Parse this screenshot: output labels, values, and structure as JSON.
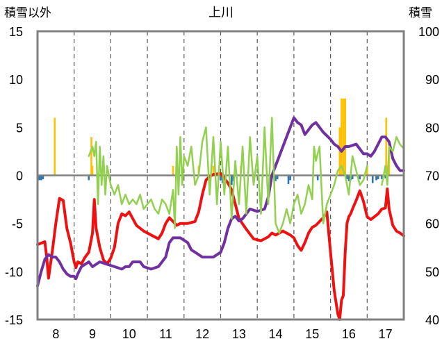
{
  "chart_data": {
    "type": "line",
    "title": "上川",
    "ylabel_left": "積雪以外",
    "ylabel_right": "積雪",
    "x_ticks": [
      "8",
      "9",
      "10",
      "11",
      "12",
      "13",
      "14",
      "15",
      "16",
      "17"
    ],
    "x_range": [
      7.5,
      17.5
    ],
    "ylim_left": [
      -15,
      15
    ],
    "ylim_right": [
      40,
      100
    ],
    "y_ticks_left": [
      "15",
      "10",
      "5",
      "0",
      "-5",
      "-10",
      "-15"
    ],
    "y_ticks_right": [
      "100",
      "90",
      "80",
      "70",
      "60",
      "50",
      "40"
    ],
    "grid": "dashed vertical",
    "legend": "none",
    "colors": {
      "red": "#ee1111",
      "green": "#92d050",
      "purple": "#7030a0",
      "orange": "#ffc000",
      "blue": "#2e75b6",
      "axis": "#808080"
    },
    "series": [
      {
        "axis": "left",
        "color": "#ee1111",
        "width": 4,
        "x": [
          7.5,
          7.7,
          7.75,
          7.8,
          7.9,
          8.0,
          8.1,
          8.2,
          8.3,
          8.4,
          8.5,
          8.55,
          8.6,
          8.7,
          8.8,
          8.9,
          9.0,
          9.05,
          9.1,
          9.2,
          9.3,
          9.4,
          9.5,
          9.6,
          9.7,
          9.8,
          9.9,
          10.0,
          10.2,
          10.4,
          10.6,
          10.8,
          10.9,
          11.0,
          11.1,
          11.2,
          11.3,
          11.4,
          11.6,
          11.8,
          11.9,
          12.0,
          12.1,
          12.2,
          12.3,
          12.5,
          12.6,
          12.7,
          12.8,
          12.9,
          13.0,
          13.2,
          13.4,
          13.6,
          13.8,
          13.9,
          14.0,
          14.2,
          14.4,
          14.5,
          14.6,
          14.7,
          14.8,
          14.9,
          15.0,
          15.1,
          15.2,
          15.3,
          15.4,
          15.5,
          15.6,
          15.7,
          15.75,
          15.8,
          15.85,
          15.9,
          15.95,
          16.0,
          16.05,
          16.1,
          16.2,
          16.3,
          16.4,
          16.5,
          16.6,
          16.7,
          16.8,
          16.9,
          17.0,
          17.05,
          17.1,
          17.2,
          17.3,
          17.4,
          17.5
        ],
        "y": [
          -7.2,
          -6.9,
          -8.5,
          -10.7,
          -8.0,
          -5.0,
          -2.4,
          -2.6,
          -5.5,
          -7.0,
          -9.0,
          -9.6,
          -9.0,
          -9.2,
          -8.5,
          -8.0,
          -6.0,
          -2.5,
          -5.5,
          -7.5,
          -8.8,
          -9.2,
          -8.6,
          -7.5,
          -5.0,
          -4.0,
          -4.2,
          -3.8,
          -5.2,
          -5.8,
          -6.2,
          -6.6,
          -6.0,
          -5.0,
          -4.4,
          -4.8,
          -5.2,
          -5.0,
          -5.0,
          -4.8,
          -3.8,
          -2.0,
          -0.5,
          -0.1,
          0.1,
          0.2,
          -0.3,
          -0.8,
          -1.5,
          -3.0,
          -4.5,
          -5.6,
          -6.6,
          -6.8,
          -6.4,
          -6.0,
          -6.2,
          -5.8,
          -6.2,
          -6.5,
          -7.3,
          -7.8,
          -7.0,
          -6.0,
          -5.4,
          -5.2,
          -4.8,
          -4.4,
          -3.8,
          -8.0,
          -12.0,
          -14.4,
          -15.0,
          -13.0,
          -12.5,
          -8.0,
          -5.0,
          -4.3,
          -4.0,
          -3.5,
          -2.6,
          -1.6,
          -2.7,
          -4.3,
          -4.6,
          -4.3,
          -4.0,
          -3.5,
          -3.4,
          -1.4,
          -3.5,
          -5.2,
          -5.8,
          -6.0,
          -6.3
        ]
      },
      {
        "axis": "right",
        "color": "#7030a0",
        "width": 4,
        "x": [
          7.5,
          7.6,
          7.7,
          7.8,
          7.9,
          8.0,
          8.1,
          8.2,
          8.3,
          8.4,
          8.5,
          8.55,
          8.6,
          8.7,
          8.9,
          9.0,
          9.2,
          9.4,
          9.6,
          9.8,
          9.9,
          10.0,
          10.1,
          10.3,
          10.4,
          10.6,
          10.8,
          10.9,
          11.0,
          11.1,
          11.2,
          11.4,
          11.6,
          11.7,
          11.9,
          12.0,
          12.1,
          12.3,
          12.5,
          12.6,
          12.7,
          12.8,
          12.9,
          13.0,
          13.1,
          13.3,
          13.5,
          13.7,
          13.8,
          13.9,
          14.5,
          14.6,
          14.7,
          14.8,
          14.9,
          15.0,
          15.1,
          15.2,
          15.3,
          15.5,
          15.6,
          15.7,
          15.8,
          15.9,
          16.0,
          16.2,
          16.4,
          16.5,
          16.6,
          16.7,
          16.8,
          16.9,
          17.0,
          17.1,
          17.2,
          17.3,
          17.4,
          17.5
        ],
        "y": [
          47.0,
          50.0,
          52.5,
          53.5,
          53.0,
          53.0,
          52.0,
          50.5,
          49.5,
          49.0,
          49.0,
          48.5,
          49.5,
          51.0,
          52.0,
          51.0,
          52.0,
          51.5,
          51.0,
          50.5,
          51.0,
          51.0,
          52.0,
          52.0,
          51.0,
          50.5,
          51.0,
          52.0,
          53.0,
          56.0,
          57.0,
          57.0,
          56.0,
          54.5,
          53.5,
          53.0,
          53.0,
          53.0,
          54.0,
          56.0,
          59.0,
          61.0,
          61.5,
          60.5,
          61.0,
          63.0,
          62.5,
          63.0,
          65.5,
          70.0,
          82.0,
          81.0,
          80.5,
          78.5,
          79.5,
          80.5,
          81.0,
          80.0,
          79.0,
          77.5,
          76.5,
          76.0,
          75.0,
          76.0,
          76.0,
          76.5,
          74.5,
          74.5,
          74.0,
          75.0,
          76.5,
          78.0,
          78.0,
          77.0,
          73.5,
          72.0,
          71.0,
          71.0
        ]
      },
      {
        "axis": "left",
        "color": "#92d050",
        "width": 2.5,
        "x": [
          8.9,
          9.0,
          9.05,
          9.1,
          9.15,
          9.2,
          9.25,
          9.3,
          9.35,
          9.4,
          9.5,
          9.6,
          9.7,
          9.8,
          9.9,
          10.0,
          10.1,
          10.2,
          10.3,
          10.4,
          10.5,
          10.6,
          10.7,
          10.8,
          10.9,
          11.0,
          11.1,
          11.2,
          11.25,
          11.3,
          11.35,
          11.4,
          11.45,
          11.5,
          11.6,
          11.7,
          11.8,
          11.9,
          12.0,
          12.1,
          12.2,
          12.3,
          12.4,
          12.5,
          12.6,
          12.7,
          12.8,
          12.9,
          13.0,
          13.1,
          13.2,
          13.3,
          13.4,
          13.5,
          13.6,
          13.7,
          13.8,
          13.9,
          14.0,
          14.1,
          14.2,
          14.3,
          14.4,
          14.5,
          14.6,
          14.7,
          14.8,
          14.9,
          15.0,
          15.05,
          15.1,
          15.2,
          15.3,
          15.4,
          15.5,
          15.6,
          15.7,
          15.8,
          15.9,
          16.0,
          16.1,
          16.2,
          16.3,
          16.4,
          16.5
        ],
        "y": [
          2.0,
          3.0,
          2.0,
          3.5,
          -3.0,
          3.0,
          -1.0,
          2.0,
          -2.0,
          1.0,
          -1.0,
          -2.0,
          -1.0,
          -3.0,
          -2.0,
          -3.0,
          -2.5,
          -3.0,
          -2.0,
          -3.5,
          -3.0,
          -2.5,
          -3.5,
          -4.0,
          -2.5,
          -3.0,
          -4.0,
          -1.5,
          -5.5,
          3.0,
          -2.0,
          4.0,
          -1.0,
          2.0,
          1.0,
          3.0,
          -1.0,
          0.0,
          3.5,
          5.0,
          -2.0,
          4.0,
          -3.0,
          3.5,
          -2.0,
          3.0,
          -4.5,
          1.5,
          -3.0,
          3.0,
          -4.0,
          4.0,
          -1.0,
          2.0,
          -4.0,
          5.0,
          -3.0,
          6.0,
          -5.0,
          -6.0,
          -5.0,
          -3.5,
          -5.0,
          -3.0,
          -2.0,
          -4.0,
          -3.0,
          -1.0,
          -2.5,
          3.0,
          1.5,
          3.0,
          -5.0,
          -3.0,
          -2.0,
          -1.0,
          0.5,
          1.0,
          0.0,
          -2.0,
          2.0,
          0.5,
          -1.0,
          -0.5,
          1.0
        ]
      },
      {
        "axis": "left",
        "color": "#92d050",
        "width": 2.5,
        "x": [
          16.9,
          17.0,
          17.05,
          17.1,
          17.2,
          17.3,
          17.4,
          17.5
        ],
        "y": [
          -1.0,
          1.0,
          -1.0,
          3.0,
          2.5,
          4.0,
          3.2,
          2.8
        ]
      }
    ],
    "bars": [
      {
        "color": "#ffc000",
        "x": [
          7.97,
          8.97,
          9.0,
          11.2,
          11.9,
          12.3,
          13.05,
          15.75,
          15.8,
          15.85,
          15.9,
          16.5,
          17.02,
          17.05,
          17.1
        ],
        "values": [
          6.0,
          4.0,
          1.0,
          1.0,
          1.0,
          1.0,
          1.0,
          5.0,
          8.0,
          8.0,
          8.0,
          1.0,
          6.0,
          1.0,
          3.0
        ]
      },
      {
        "color": "#2e75b6",
        "x": [
          7.55,
          7.6,
          7.65,
          8.9,
          12.5,
          12.55,
          12.8,
          12.85,
          13.4,
          14.0,
          14.05,
          14.35,
          14.4,
          15.15,
          15.95,
          16.0,
          16.05,
          16.1,
          16.3,
          16.65,
          16.75,
          16.8,
          16.9,
          17.0
        ],
        "values": [
          -0.5,
          -0.5,
          -0.4,
          -0.5,
          -0.5,
          -0.8,
          -1.0,
          -0.6,
          -0.6,
          -0.6,
          -0.4,
          -0.9,
          -0.5,
          -0.5,
          -0.4,
          -0.6,
          -0.5,
          -0.4,
          -0.4,
          -0.8,
          -0.5,
          -0.4,
          -0.4,
          -0.3
        ]
      }
    ]
  }
}
